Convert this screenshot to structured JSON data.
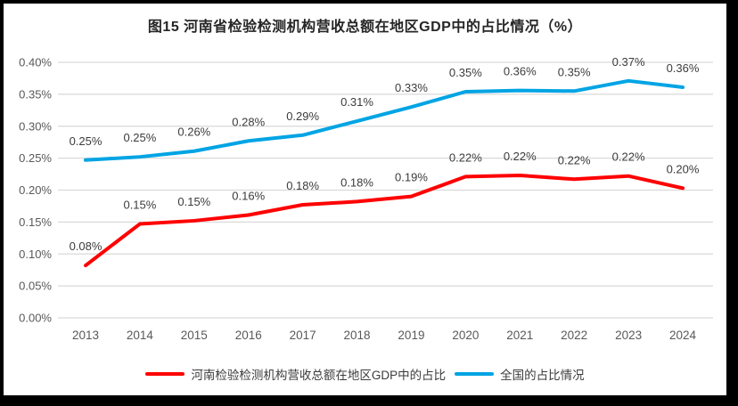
{
  "title": "图15  河南省检验检测机构营收总额在地区GDP中的占比情况（%）",
  "chart_data": {
    "type": "line",
    "title": "图15  河南省检验检测机构营收总额在地区GDP中的占比情况（%）",
    "categories": [
      "2013",
      "2014",
      "2015",
      "2016",
      "2017",
      "2018",
      "2019",
      "2020",
      "2021",
      "2022",
      "2023",
      "2024"
    ],
    "series": [
      {
        "name": "河南检验检测机构营收总额在地区GDP中的占比",
        "color": "#ff0000",
        "values": [
          0.08,
          0.15,
          0.15,
          0.16,
          0.18,
          0.18,
          0.19,
          0.22,
          0.22,
          0.22,
          0.22,
          0.2
        ],
        "labels": [
          "0.08%",
          "0.15%",
          "0.15%",
          "0.16%",
          "0.18%",
          "0.18%",
          "0.19%",
          "0.22%",
          "0.22%",
          "0.22%",
          "0.22%",
          "0.20%"
        ],
        "plot_values": [
          0.082,
          0.147,
          0.152,
          0.161,
          0.177,
          0.182,
          0.19,
          0.221,
          0.223,
          0.217,
          0.222,
          0.203
        ]
      },
      {
        "name": "全国的占比情况",
        "color": "#00a4e4",
        "values": [
          0.25,
          0.25,
          0.26,
          0.28,
          0.29,
          0.31,
          0.33,
          0.35,
          0.36,
          0.35,
          0.37,
          0.36
        ],
        "labels": [
          "0.25%",
          "0.25%",
          "0.26%",
          "0.28%",
          "0.29%",
          "0.31%",
          "0.33%",
          "0.35%",
          "0.36%",
          "0.35%",
          "0.37%",
          "0.36%"
        ],
        "plot_values": [
          0.247,
          0.252,
          0.261,
          0.277,
          0.286,
          0.308,
          0.33,
          0.354,
          0.356,
          0.355,
          0.371,
          0.361
        ]
      }
    ],
    "xlabel": "",
    "ylabel": "",
    "ylim": [
      0,
      0.4
    ],
    "y_tick_step": 0.05,
    "y_tick_labels": [
      "0.00%",
      "0.05%",
      "0.10%",
      "0.15%",
      "0.20%",
      "0.25%",
      "0.30%",
      "0.35%",
      "0.40%"
    ],
    "grid": true,
    "legend_position": "bottom"
  },
  "colors": {
    "grid_line": "#d9d9d9",
    "axis_text": "#595959",
    "data_label_text": "#3b3b3b",
    "title_text": "#262626",
    "frame_border": "#000000"
  }
}
